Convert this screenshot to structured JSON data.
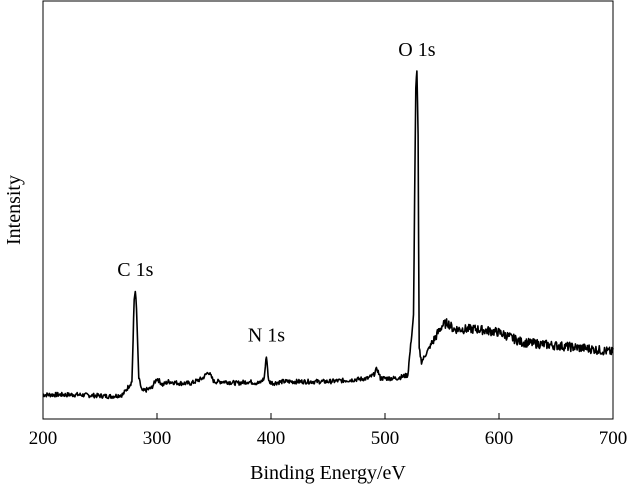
{
  "chart_data": {
    "type": "line",
    "title": "",
    "xlabel": "Binding Energy/eV",
    "ylabel": "Intensity",
    "xlim": [
      200,
      700
    ],
    "ylim": [
      0,
      100
    ],
    "xticks": [
      "200",
      "300",
      "400",
      "500",
      "600",
      "700"
    ],
    "yticks_labeled": false,
    "grid": false,
    "legend": "none",
    "line_color": "#000000",
    "series": [
      {
        "values_description": "XPS survey spectrum (arbitrary intensity units)",
        "x": [
          200,
          230,
          260,
          270,
          278,
          280,
          281,
          282,
          284,
          287,
          295,
          300,
          305,
          310,
          320,
          330,
          340,
          345,
          350,
          360,
          370,
          380,
          390,
          394,
          396,
          398,
          402,
          410,
          430,
          450,
          470,
          485,
          490,
          493,
          496,
          500,
          510,
          520,
          525,
          527,
          528,
          529,
          530,
          532,
          540,
          550,
          555,
          560,
          580,
          600,
          620,
          650,
          680,
          700
        ],
        "y": [
          1,
          1,
          0.5,
          1,
          5,
          30,
          33,
          27,
          6,
          2,
          3,
          6,
          4,
          5,
          4.5,
          4.5,
          6,
          8,
          5,
          5,
          4.5,
          5,
          4.5,
          6,
          13,
          5,
          4.5,
          5,
          5,
          5,
          5.5,
          6,
          7,
          9,
          6,
          6,
          6,
          7,
          25,
          95,
          100,
          80,
          15,
          11,
          16,
          22,
          23,
          21,
          21,
          20,
          17,
          16,
          15,
          14
        ]
      }
    ],
    "annotations": [
      {
        "text": "C 1s",
        "x": 281,
        "y": 33
      },
      {
        "text": "N 1s",
        "x": 396,
        "y": 13
      },
      {
        "text": "O 1s",
        "x": 528,
        "y": 100
      }
    ]
  }
}
